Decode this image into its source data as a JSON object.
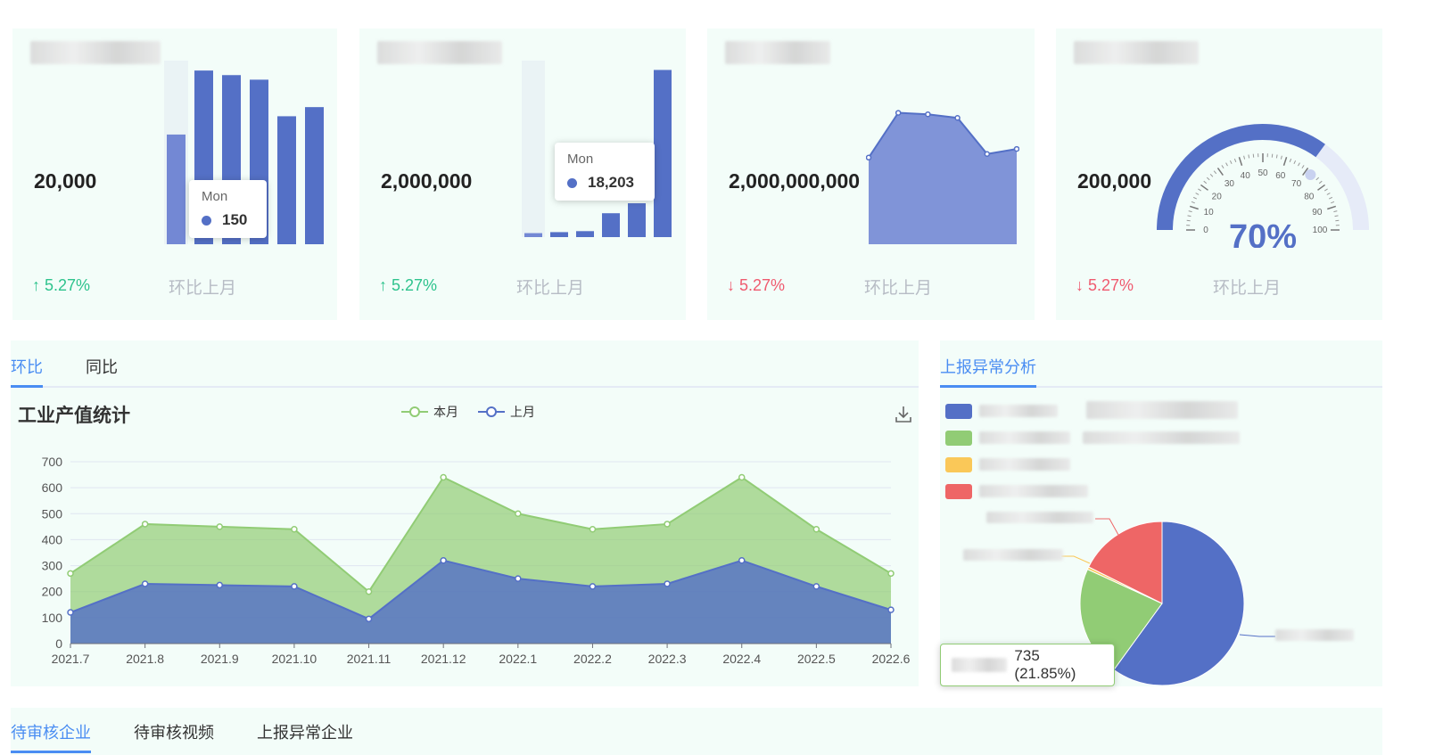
{
  "kpis": [
    {
      "title": "",
      "value": "20,000",
      "change": "5.27%",
      "direction": "up",
      "compare": "环比上月",
      "tooltip": {
        "label": "Mon",
        "value": "150"
      },
      "bars": [
        120,
        190,
        185,
        180,
        140,
        150
      ],
      "highlight_index": 0
    },
    {
      "title": "",
      "value": "2,000,000",
      "change": "5.27%",
      "direction": "up",
      "compare": "环比上月",
      "tooltip": {
        "label": "Mon",
        "value": "18,203"
      },
      "bars": [
        2,
        2.5,
        3,
        12,
        17,
        84
      ],
      "highlight_index": 0
    },
    {
      "title": "",
      "value": "2,000,000,000",
      "change": "5.27%",
      "direction": "down",
      "compare": "环比上月",
      "area": [
        120,
        182,
        180,
        175,
        125,
        132
      ]
    },
    {
      "title": "",
      "value": "200,000",
      "change": "5.27%",
      "direction": "down",
      "compare": "环比上月",
      "gauge": {
        "value": 70,
        "label": "70%",
        "ticks": [
          "0",
          "10",
          "20",
          "30",
          "40",
          "50",
          "60",
          "70",
          "80",
          "90",
          "100"
        ]
      }
    }
  ],
  "main_tabs": [
    {
      "label": "环比",
      "active": true
    },
    {
      "label": "同比",
      "active": false
    }
  ],
  "chart": {
    "title": "工业产值统计",
    "legend": [
      "本月",
      "上月"
    ],
    "download_icon": "download-icon",
    "colors": {
      "current": "#91cc75",
      "previous": "#5470c6"
    }
  },
  "chart_data": {
    "type": "area",
    "title": "工业产值统计",
    "categories": [
      "2021.7",
      "2021.8",
      "2021.9",
      "2021.10",
      "2021.11",
      "2021.12",
      "2022.1",
      "2022.2",
      "2022.3",
      "2022.4",
      "2022.5",
      "2022.6"
    ],
    "series": [
      {
        "name": "本月",
        "values": [
          270,
          460,
          450,
          440,
          200,
          640,
          500,
          440,
          460,
          640,
          440,
          270
        ]
      },
      {
        "name": "上月",
        "values": [
          120,
          230,
          225,
          220,
          95,
          320,
          250,
          220,
          230,
          320,
          220,
          130
        ]
      }
    ],
    "yticks": [
      0,
      100,
      200,
      300,
      400,
      500,
      600,
      700
    ],
    "ylim": [
      0,
      700
    ],
    "legend_position": "top-center",
    "grid": true
  },
  "side_tab": {
    "label": "上报异常分析"
  },
  "pie": {
    "colors": [
      "#5470c6",
      "#91cc75",
      "#fac858",
      "#ee6666"
    ],
    "values": [
      60,
      21.85,
      0.5,
      17.65
    ],
    "tooltip_value": "735 (21.85%)"
  },
  "bottom_tabs": [
    {
      "label": "待审核企业",
      "active": true
    },
    {
      "label": "待审核视频",
      "active": false
    },
    {
      "label": "上报异常企业",
      "active": false
    }
  ]
}
